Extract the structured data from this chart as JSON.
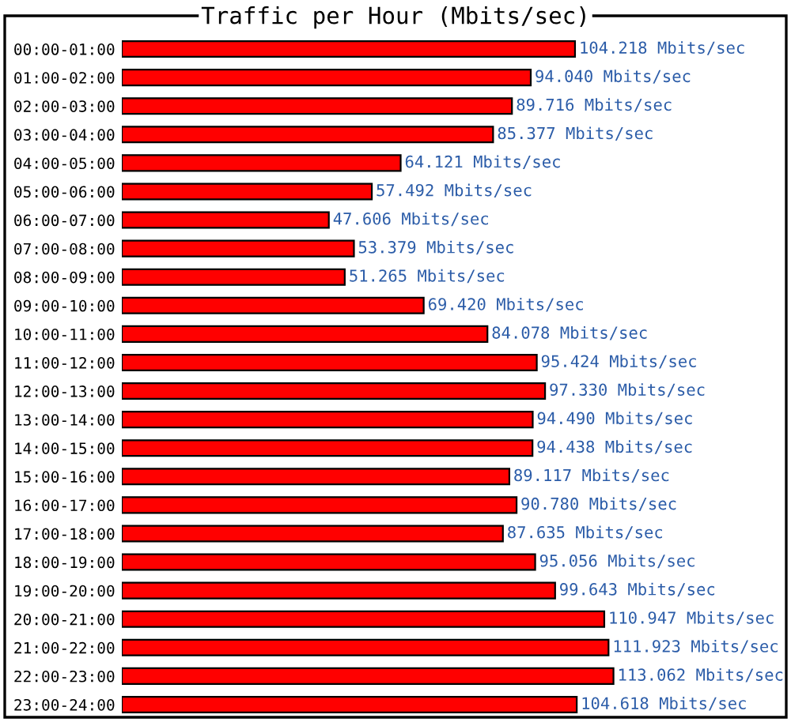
{
  "chart_data": {
    "type": "bar",
    "orientation": "horizontal",
    "title": "Traffic per Hour (Mbits/sec)",
    "categories": [
      "00:00-01:00",
      "01:00-02:00",
      "02:00-03:00",
      "03:00-04:00",
      "04:00-05:00",
      "05:00-06:00",
      "06:00-07:00",
      "07:00-08:00",
      "08:00-09:00",
      "09:00-10:00",
      "10:00-11:00",
      "11:00-12:00",
      "12:00-13:00",
      "13:00-14:00",
      "14:00-15:00",
      "15:00-16:00",
      "16:00-17:00",
      "17:00-18:00",
      "18:00-19:00",
      "19:00-20:00",
      "20:00-21:00",
      "21:00-22:00",
      "22:00-23:00",
      "23:00-24:00"
    ],
    "values": [
      104.218,
      94.04,
      89.716,
      85.377,
      64.121,
      57.492,
      47.606,
      53.379,
      51.265,
      69.42,
      84.078,
      95.424,
      97.33,
      94.49,
      94.438,
      89.117,
      90.78,
      87.635,
      95.056,
      99.643,
      110.947,
      111.923,
      113.062,
      104.618
    ],
    "value_labels": [
      "104.218 Mbits/sec",
      "94.040 Mbits/sec",
      "89.716 Mbits/sec",
      "85.377 Mbits/sec",
      "64.121 Mbits/sec",
      "57.492 Mbits/sec",
      "47.606 Mbits/sec",
      "53.379 Mbits/sec",
      "51.265 Mbits/sec",
      "69.420 Mbits/sec",
      "84.078 Mbits/sec",
      "95.424 Mbits/sec",
      "97.330 Mbits/sec",
      "94.490 Mbits/sec",
      "94.438 Mbits/sec",
      "89.117 Mbits/sec",
      "90.780 Mbits/sec",
      "87.635 Mbits/sec",
      "95.056 Mbits/sec",
      "99.643 Mbits/sec",
      "110.947 Mbits/sec",
      "111.923 Mbits/sec",
      "113.062 Mbits/sec",
      "104.618 Mbits/sec"
    ],
    "color": "#ff0000",
    "tick_labels": "y",
    "grid": false,
    "legend": false
  }
}
